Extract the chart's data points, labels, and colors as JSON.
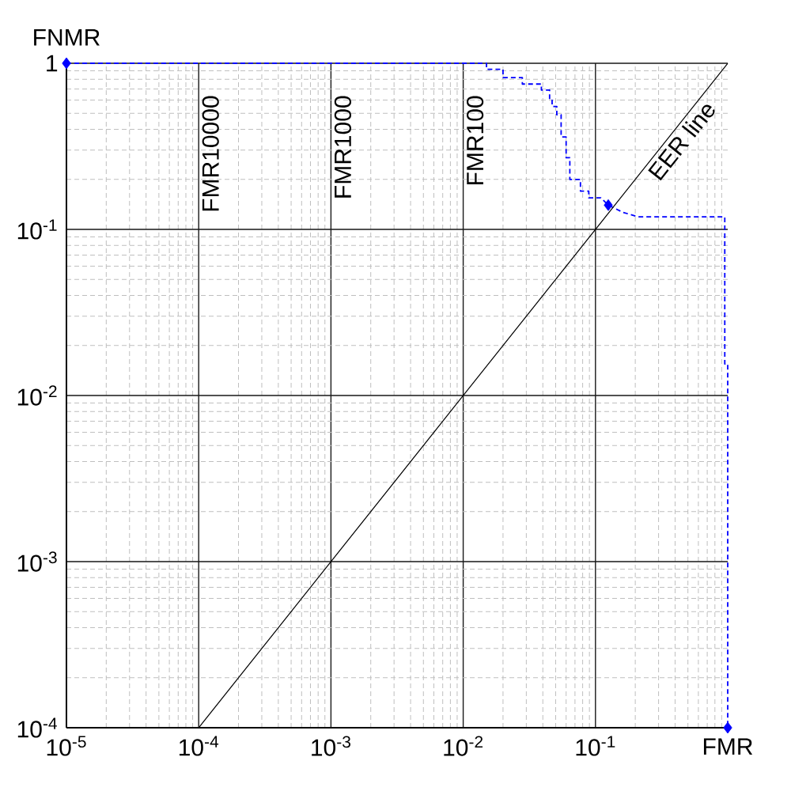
{
  "chart_data": {
    "type": "line",
    "xlabel": "FMR",
    "ylabel": "FNMR",
    "log": "xy",
    "grid": true,
    "xlim": [
      1e-05,
      1
    ],
    "ylim": [
      0.0001,
      1
    ],
    "xticks": [
      {
        "value": 1e-05,
        "label": "10$^{-5}$"
      },
      {
        "value": 0.0001,
        "label": "10$^{-4}$"
      },
      {
        "value": 0.001,
        "label": "10$^{-3}$"
      },
      {
        "value": 0.01,
        "label": "10$^{-2}$"
      },
      {
        "value": 0.1,
        "label": "10$^{-1}$"
      }
    ],
    "yticks": [
      {
        "value": 0.0001,
        "label": "10$^{-4}$"
      },
      {
        "value": 0.001,
        "label": "10$^{-3}$"
      },
      {
        "value": 0.01,
        "label": "10$^{-2}$"
      },
      {
        "value": 0.1,
        "label": "10$^{-1}$"
      },
      1
    ],
    "series": [
      {
        "color": "#0000ff",
        "line_style": "dashed",
        "marker": "none",
        "x": [
          1e-05,
          0.015,
          0.015,
          0.02,
          0.02,
          0.028,
          0.028,
          0.039,
          0.039,
          0.045,
          0.045,
          0.047,
          0.047,
          0.051,
          0.051,
          0.055,
          0.055,
          0.06,
          0.06,
          0.064,
          0.064,
          0.077,
          0.077,
          0.089,
          0.089,
          0.11,
          0.125,
          0.16,
          0.21,
          0.95,
          0.95,
          1,
          1
        ],
        "values": [
          1,
          1,
          0.92,
          0.92,
          0.82,
          0.82,
          0.75,
          0.75,
          0.69,
          0.69,
          0.6,
          0.6,
          0.55,
          0.55,
          0.49,
          0.49,
          0.36,
          0.36,
          0.27,
          0.27,
          0.2,
          0.2,
          0.17,
          0.17,
          0.155,
          0.155,
          0.14,
          0.127,
          0.119,
          0.119,
          0.0155,
          0.0155,
          0.0001
        ]
      },
      {
        "name": "EER line",
        "color": "#000000",
        "line_style": "solid",
        "marker": "none",
        "x": [
          1e-05,
          0.0001,
          1
        ],
        "values": [
          0.0001,
          0.0001,
          1
        ]
      },
      {
        "type": "scatter",
        "color": "#0000ff",
        "marker": "diamond",
        "x": [
          1e-05,
          0.125,
          1
        ],
        "values": [
          1,
          0.14,
          0.0001
        ]
      }
    ],
    "annotations": [
      "FMR10000",
      "FMR1000",
      "FMR100"
    ]
  }
}
